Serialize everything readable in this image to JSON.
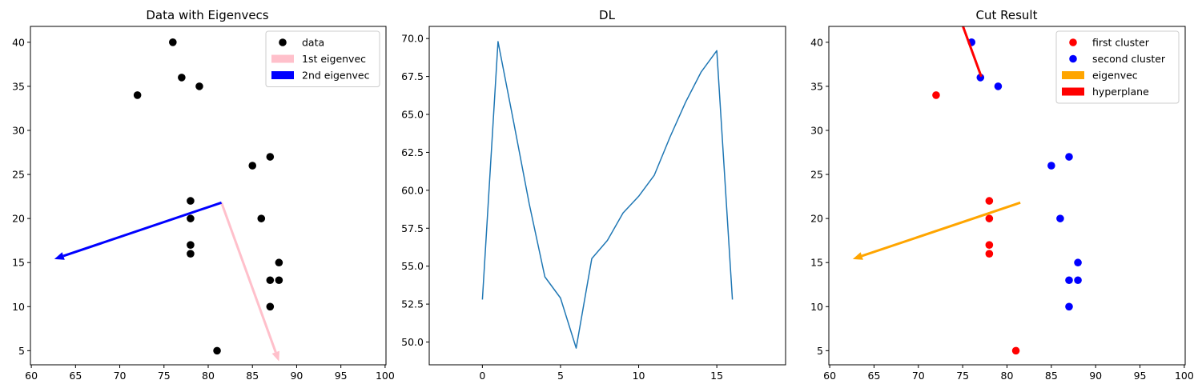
{
  "chart_data": [
    {
      "type": "scatter",
      "title": "Data with Eigenvecs",
      "xlim": [
        59.9,
        100.1
      ],
      "ylim": [
        3.4,
        41.8
      ],
      "xticks": [
        60,
        65,
        70,
        75,
        80,
        85,
        90,
        95,
        100
      ],
      "yticks": [
        5,
        10,
        15,
        20,
        25,
        30,
        35,
        40
      ],
      "points": {
        "x": [
          76,
          77,
          79,
          72,
          87,
          85,
          78,
          78,
          86,
          78,
          78,
          88,
          87,
          88,
          87,
          81
        ],
        "y": [
          40,
          36,
          35,
          34,
          27,
          26,
          22,
          20,
          20,
          17,
          16,
          15,
          13,
          13,
          10,
          5
        ],
        "color": "#000000"
      },
      "arrows": [
        {
          "name": "1st eigenvec",
          "color": "#ffc0cb",
          "from": [
            81.5,
            21.8
          ],
          "to": [
            88.0,
            3.8
          ]
        },
        {
          "name": "2nd eigenvec",
          "color": "#0000ff",
          "from": [
            81.5,
            21.8
          ],
          "to": [
            62.6,
            15.4
          ]
        }
      ],
      "legend": {
        "position": "upper right",
        "entries": [
          {
            "label": "data",
            "kind": "marker",
            "color": "#000000"
          },
          {
            "label": "1st eigenvec",
            "kind": "patch",
            "color": "#ffc0cb"
          },
          {
            "label": "2nd eigenvec",
            "kind": "patch",
            "color": "#0000ff"
          }
        ]
      }
    },
    {
      "type": "line",
      "title": "DL",
      "xlim": [
        -3.4,
        19.4
      ],
      "ylim": [
        48.5,
        70.8
      ],
      "xticks": [
        0,
        5,
        10,
        15
      ],
      "yticks": [
        50.0,
        52.5,
        55.0,
        57.5,
        60.0,
        62.5,
        65.0,
        67.5,
        70.0
      ],
      "ytick_labels": [
        "50.0",
        "52.5",
        "55.0",
        "57.5",
        "60.0",
        "62.5",
        "65.0",
        "67.5",
        "70.0"
      ],
      "series": [
        {
          "color": "#1f77b4",
          "x": [
            0,
            1,
            2,
            3,
            4,
            5,
            6,
            7,
            8,
            9,
            10,
            11,
            12,
            13,
            14,
            15,
            16
          ],
          "values": [
            52.8,
            69.8,
            64.5,
            59.1,
            54.3,
            52.9,
            49.6,
            55.5,
            56.7,
            58.5,
            59.6,
            61.0,
            63.5,
            65.8,
            67.8,
            69.2,
            52.8
          ]
        }
      ]
    },
    {
      "type": "scatter",
      "title": "Cut Result",
      "xlim": [
        59.9,
        100.1
      ],
      "ylim": [
        3.4,
        41.8
      ],
      "xticks": [
        60,
        65,
        70,
        75,
        80,
        85,
        90,
        95,
        100
      ],
      "yticks": [
        5,
        10,
        15,
        20,
        25,
        30,
        35,
        40
      ],
      "clusters": [
        {
          "name": "first cluster",
          "color": "#ff0000",
          "x": [
            72,
            78,
            78,
            78,
            78,
            81
          ],
          "y": [
            34,
            22,
            20,
            17,
            16,
            5
          ]
        },
        {
          "name": "second cluster",
          "color": "#0000ff",
          "x": [
            76,
            77,
            79,
            87,
            85,
            86,
            88,
            87,
            88,
            87
          ],
          "y": [
            40,
            36,
            35,
            27,
            26,
            20,
            15,
            13,
            13,
            10
          ]
        }
      ],
      "arrows": [
        {
          "name": "eigenvec",
          "color": "#ffa500",
          "from": [
            81.5,
            21.8
          ],
          "to": [
            62.6,
            15.4
          ]
        },
        {
          "name": "hyperplane",
          "color": "#ff0000",
          "from": [
            77.1,
            36.1
          ],
          "to": [
            74.6,
            43.0
          ]
        }
      ],
      "legend": {
        "position": "upper right",
        "entries": [
          {
            "label": "first cluster",
            "kind": "marker",
            "color": "#ff0000"
          },
          {
            "label": "second cluster",
            "kind": "marker",
            "color": "#0000ff"
          },
          {
            "label": "eigenvec",
            "kind": "patch",
            "color": "#ffa500"
          },
          {
            "label": "hyperplane",
            "kind": "patch",
            "color": "#ff0000"
          }
        ]
      }
    }
  ]
}
